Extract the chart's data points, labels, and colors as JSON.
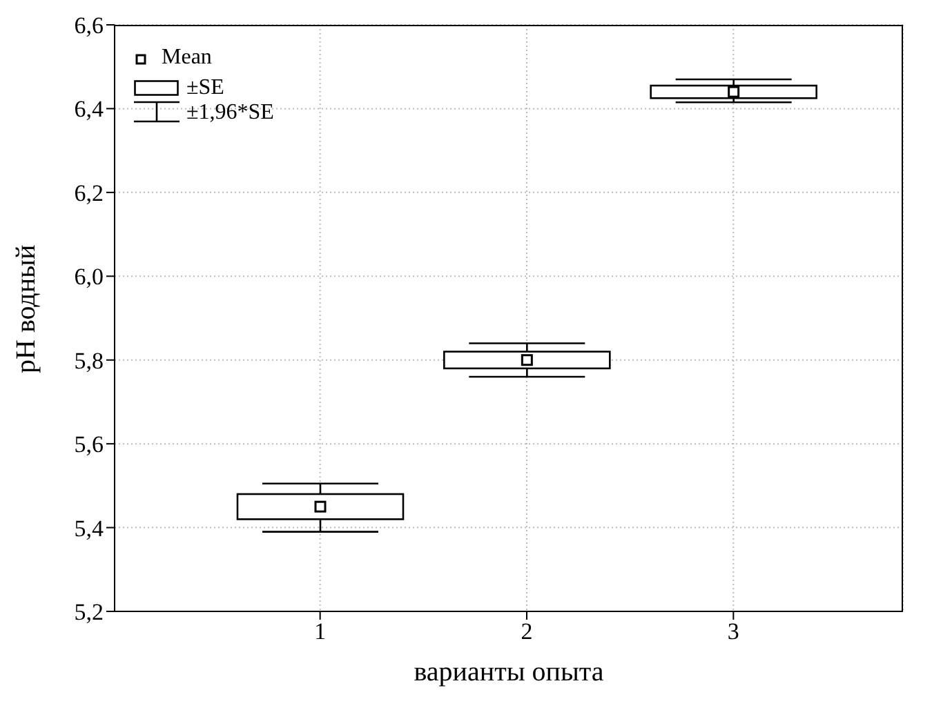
{
  "chart_data": {
    "type": "box",
    "xlabel": "варианты опыта",
    "ylabel": "pH водный",
    "categories": [
      "1",
      "2",
      "3"
    ],
    "series": [
      {
        "color": "#000000",
        "boxes": [
          {
            "low": 5.39,
            "q1": 5.42,
            "q3": 5.48,
            "high": 5.505,
            "mean": 5.45
          },
          {
            "low": 5.76,
            "q1": 5.78,
            "q3": 5.82,
            "high": 5.84,
            "mean": 5.8
          },
          {
            "low": 6.415,
            "q1": 6.425,
            "q3": 6.455,
            "high": 6.47,
            "mean": 6.44
          }
        ]
      }
    ],
    "ylim": [
      5.2,
      6.6
    ],
    "yticks": [
      {
        "value": 5.2,
        "label": "5,2"
      },
      {
        "value": 5.4,
        "label": "5,4"
      },
      {
        "value": 5.6,
        "label": "5,6"
      },
      {
        "value": 5.8,
        "label": "5,8"
      },
      {
        "value": 6.0,
        "label": "6,0"
      },
      {
        "value": 6.2,
        "label": "6,2"
      },
      {
        "value": 6.4,
        "label": "6,4"
      },
      {
        "value": 6.6,
        "label": "6,6"
      }
    ],
    "grid": true,
    "marker": "square",
    "annotations": [
      "Mean",
      "±SE",
      "±1,96*SE"
    ]
  }
}
